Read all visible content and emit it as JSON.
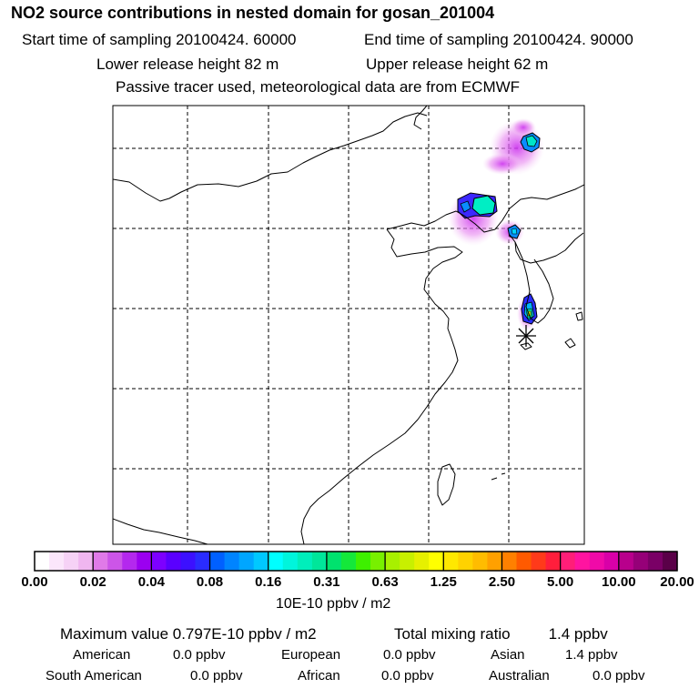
{
  "header": {
    "title": "NO2 source contributions in nested domain for gosan_201004",
    "start_label": "Start time of sampling 20100424. 60000",
    "end_label": "End time of sampling 20100424. 90000",
    "lower_label": "Lower release height   82 m",
    "upper_label": "Upper release height   62 m",
    "tracer_label": "Passive tracer used, meteorological data are from ECMWF"
  },
  "colorbar": {
    "tick_labels": [
      "0.00",
      "0.02",
      "0.04",
      "0.08",
      "0.16",
      "0.31",
      "0.63",
      "1.25",
      "2.50",
      "5.00",
      "10.00",
      "20.00"
    ],
    "unit_label": "10E-10 ppbv / m2",
    "segment_colors": [
      "#ffffff",
      "#fbe6fb",
      "#f6d2f6",
      "#f0b6f0",
      "#e07ae8",
      "#cc55e8",
      "#b428ee",
      "#9b00f0",
      "#7d00ff",
      "#5a00ff",
      "#3c10ff",
      "#2a2cff",
      "#0060ff",
      "#0084ff",
      "#00a6ff",
      "#00c8ff",
      "#00ffff",
      "#00f5dc",
      "#00eebb",
      "#00e69a",
      "#00e26e",
      "#14e83a",
      "#3ef000",
      "#78f000",
      "#a8f000",
      "#c8f000",
      "#e6f000",
      "#ffff00",
      "#ffe800",
      "#ffd200",
      "#ffbc00",
      "#ffa000",
      "#ff8000",
      "#ff5a00",
      "#ff3a1a",
      "#ff1e3c",
      "#ff1e78",
      "#ff14a0",
      "#f00aa8",
      "#d900a8",
      "#b8008c",
      "#960078",
      "#7a0066",
      "#5a0048"
    ]
  },
  "stats": {
    "max_label": "Maximum value  0.797E-10 ppbv / m2",
    "total_label": "Total mixing ratio",
    "total_value": "1.4 ppbv"
  },
  "regions": [
    {
      "name": "American",
      "value": "0.0 ppbv"
    },
    {
      "name": "European",
      "value": "0.0 ppbv"
    },
    {
      "name": "Asian",
      "value": "1.4 ppbv"
    },
    {
      "name": "South American",
      "value": "0.0 ppbv"
    },
    {
      "name": "African",
      "value": "0.0 ppbv"
    },
    {
      "name": "Australian",
      "value": "0.0 ppbv"
    }
  ]
}
